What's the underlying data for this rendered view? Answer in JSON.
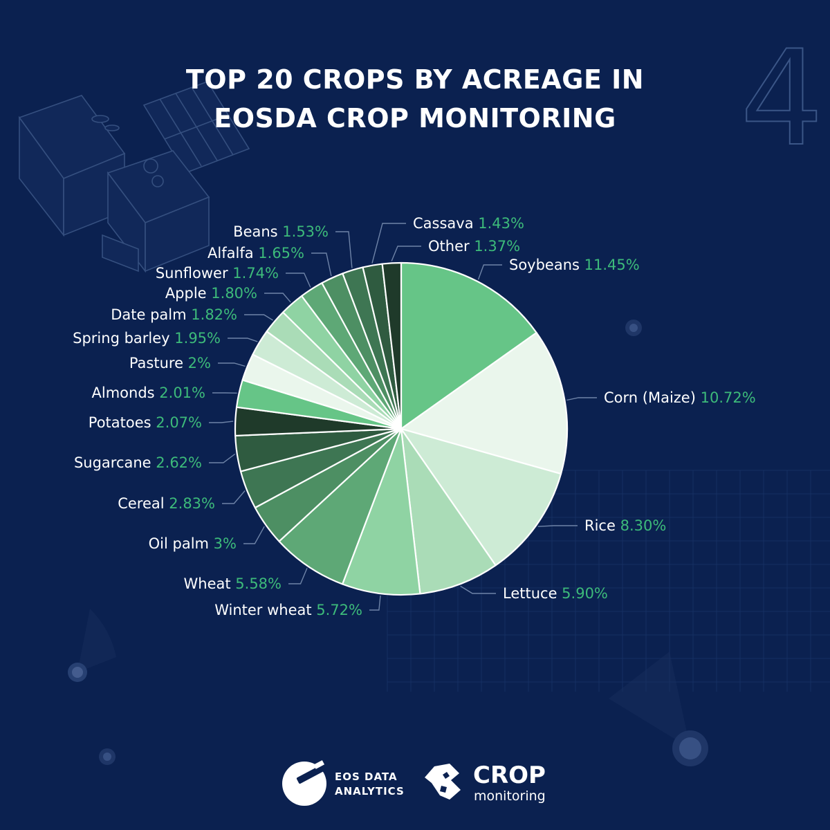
{
  "title_lines": [
    "TOP 20 CROPS BY ACREAGE IN",
    "EOSDA CROP MONITORING"
  ],
  "page_number": "4",
  "colors": {
    "background": "#0b2150",
    "accent_value": "#3dbb7a",
    "label": "#ffffff"
  },
  "chart_data": {
    "type": "pie",
    "title": "TOP 20 CROPS BY ACREAGE IN EOSDA CROP MONITORING",
    "unit": "%",
    "slices": [
      {
        "label": "Soybeans",
        "value": 11.45,
        "display": "11.45%",
        "color": "#66c587"
      },
      {
        "label": "Corn (Maize)",
        "value": 10.72,
        "display": "10.72%",
        "color": "#eaf6ec"
      },
      {
        "label": "Rice",
        "value": 8.3,
        "display": "8.30%",
        "color": "#cdebd5"
      },
      {
        "label": "Lettuce",
        "value": 5.9,
        "display": "5.90%",
        "color": "#aadcb7"
      },
      {
        "label": "Winter wheat",
        "value": 5.72,
        "display": "5.72%",
        "color": "#8fd3a3"
      },
      {
        "label": "Wheat",
        "value": 5.58,
        "display": "5.58%",
        "color": "#5ea876"
      },
      {
        "label": "Oil palm",
        "value": 3.0,
        "display": "3%",
        "color": "#4d8f63"
      },
      {
        "label": "Cereal",
        "value": 2.83,
        "display": "2.83%",
        "color": "#3e7653"
      },
      {
        "label": "Sugarcane",
        "value": 2.62,
        "display": "2.62%",
        "color": "#2f5b40"
      },
      {
        "label": "Potatoes",
        "value": 2.07,
        "display": "2.07%",
        "color": "#1f3a2a"
      },
      {
        "label": "Almonds",
        "value": 2.01,
        "display": "2.01%",
        "color": "#66c587"
      },
      {
        "label": "Pasture",
        "value": 2.0,
        "display": "2%",
        "color": "#eaf6ec"
      },
      {
        "label": "Spring barley",
        "value": 1.95,
        "display": "1.95%",
        "color": "#cdebd5"
      },
      {
        "label": "Date palm",
        "value": 1.82,
        "display": "1.82%",
        "color": "#aadcb7"
      },
      {
        "label": "Apple",
        "value": 1.8,
        "display": "1.80%",
        "color": "#8fd3a3"
      },
      {
        "label": "Sunflower",
        "value": 1.74,
        "display": "1.74%",
        "color": "#5ea876"
      },
      {
        "label": "Alfalfa",
        "value": 1.65,
        "display": "1.65%",
        "color": "#4d8f63"
      },
      {
        "label": "Beans",
        "value": 1.53,
        "display": "1.53%",
        "color": "#3e7653"
      },
      {
        "label": "Cassava",
        "value": 1.43,
        "display": "1.43%",
        "color": "#2f5b40"
      },
      {
        "label": "Other",
        "value": 1.37,
        "display": "1.37%",
        "color": "#1f3a2a"
      }
    ]
  },
  "logos": {
    "eos": [
      "EOS DATA",
      "ANALYTICS"
    ],
    "crop": {
      "big": "CROP",
      "small": "monitoring"
    }
  }
}
